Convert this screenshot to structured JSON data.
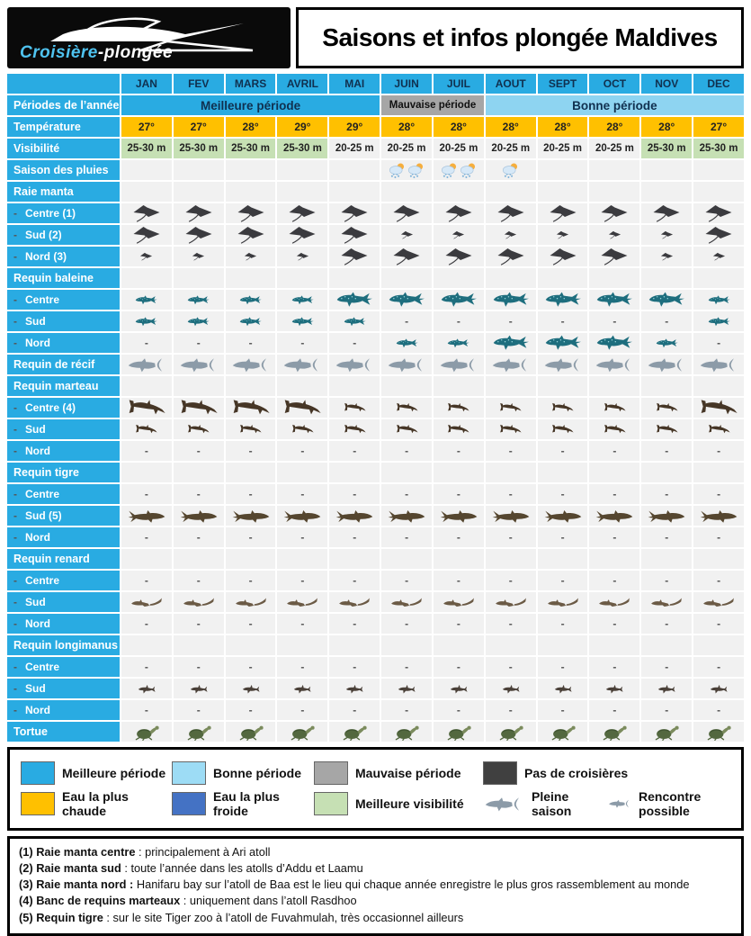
{
  "header": {
    "logo_text_1": "Croisière",
    "logo_text_2": "-plongée",
    "title": "Saisons et infos plongée Maldives"
  },
  "chart_data": {
    "type": "table",
    "title": "Saisons et infos plongée Maldives",
    "columns": [
      "JAN",
      "FEV",
      "MARS",
      "AVRIL",
      "MAI",
      "JUIN",
      "JUIL",
      "AOUT",
      "SEPT",
      "OCT",
      "NOV",
      "DEC"
    ],
    "row_labels": {
      "periods": "Périodes de l’année",
      "temperature": "Température",
      "visibility": "Visibilité",
      "rain": "Saison des pluies"
    },
    "periods": [
      {
        "label": "Meilleure période",
        "span": 5,
        "bg": "#29abe2"
      },
      {
        "label": "Mauvaise période",
        "span": 2,
        "bg": "#a6a6a6"
      },
      {
        "label": "Bonne période",
        "span": 5,
        "bg": "#8ed4f1"
      }
    ],
    "temperature": [
      "27°",
      "27°",
      "28°",
      "29°",
      "29°",
      "28°",
      "28°",
      "28°",
      "28°",
      "28°",
      "28°",
      "27°"
    ],
    "visibility": {
      "values": [
        "25-30 m",
        "25-30 m",
        "25-30 m",
        "25-30 m",
        "20-25 m",
        "20-25 m",
        "20-25 m",
        "20-25 m",
        "20-25 m",
        "20-25 m",
        "25-30 m",
        "25-30 m"
      ],
      "best": [
        true,
        true,
        true,
        true,
        false,
        false,
        false,
        false,
        false,
        false,
        true,
        true
      ]
    },
    "rain_counts": [
      0,
      0,
      0,
      0,
      0,
      2,
      2,
      1,
      0,
      0,
      0,
      0
    ],
    "icon_size_legend": {
      "B": "Pleine saison",
      "S": "Rencontre possible",
      "-": "absent"
    },
    "species": [
      {
        "name": "Raie manta",
        "icon": "manta",
        "rows": [
          {
            "label": "Centre (1)",
            "cells": [
              "B",
              "B",
              "B",
              "B",
              "B",
              "B",
              "B",
              "B",
              "B",
              "B",
              "B",
              "B"
            ]
          },
          {
            "label": "Sud (2)",
            "cells": [
              "B",
              "B",
              "B",
              "B",
              "B",
              "S",
              "S",
              "S",
              "S",
              "S",
              "S",
              "B"
            ]
          },
          {
            "label": "Nord (3)",
            "cells": [
              "S",
              "S",
              "S",
              "S",
              "B",
              "B",
              "B",
              "B",
              "B",
              "B",
              "S",
              "S"
            ]
          }
        ]
      },
      {
        "name": "Requin baleine",
        "icon": "whale",
        "rows": [
          {
            "label": "Centre",
            "cells": [
              "S",
              "S",
              "S",
              "S",
              "B",
              "B",
              "B",
              "B",
              "B",
              "B",
              "B",
              "S"
            ]
          },
          {
            "label": "Sud",
            "cells": [
              "S",
              "S",
              "S",
              "S",
              "S",
              "-",
              "-",
              "-",
              "-",
              "-",
              "-",
              "S"
            ]
          },
          {
            "label": "Nord",
            "cells": [
              "-",
              "-",
              "-",
              "-",
              "-",
              "S",
              "S",
              "B",
              "B",
              "B",
              "S",
              "-"
            ]
          }
        ]
      },
      {
        "name": "Requin de récif",
        "icon": "reef",
        "single": true,
        "cells": [
          "B",
          "B",
          "B",
          "B",
          "B",
          "B",
          "B",
          "B",
          "B",
          "B",
          "B",
          "B"
        ]
      },
      {
        "name": "Requin marteau",
        "icon": "hammer",
        "rows": [
          {
            "label": "Centre (4)",
            "cells": [
              "B",
              "B",
              "B",
              "B",
              "S",
              "S",
              "S",
              "S",
              "S",
              "S",
              "S",
              "B"
            ]
          },
          {
            "label": "Sud",
            "cells": [
              "S",
              "S",
              "S",
              "S",
              "S",
              "S",
              "S",
              "S",
              "S",
              "S",
              "S",
              "S"
            ]
          },
          {
            "label": "Nord",
            "cells": [
              "-",
              "-",
              "-",
              "-",
              "-",
              "-",
              "-",
              "-",
              "-",
              "-",
              "-",
              "-"
            ]
          }
        ]
      },
      {
        "name": "Requin tigre",
        "icon": "tiger",
        "rows": [
          {
            "label": "Centre",
            "cells": [
              "-",
              "-",
              "-",
              "-",
              "-",
              "-",
              "-",
              "-",
              "-",
              "-",
              "-",
              "-"
            ]
          },
          {
            "label": "Sud (5)",
            "cells": [
              "B",
              "B",
              "B",
              "B",
              "B",
              "B",
              "B",
              "B",
              "B",
              "B",
              "B",
              "B"
            ]
          },
          {
            "label": "Nord",
            "cells": [
              "-",
              "-",
              "-",
              "-",
              "-",
              "-",
              "-",
              "-",
              "-",
              "-",
              "-",
              "-"
            ]
          }
        ]
      },
      {
        "name": "Requin renard",
        "icon": "thresher",
        "rows": [
          {
            "label": "Centre",
            "cells": [
              "-",
              "-",
              "-",
              "-",
              "-",
              "-",
              "-",
              "-",
              "-",
              "-",
              "-",
              "-"
            ]
          },
          {
            "label": "Sud",
            "cells": [
              "S",
              "S",
              "S",
              "S",
              "S",
              "S",
              "S",
              "S",
              "S",
              "S",
              "S",
              "S"
            ]
          },
          {
            "label": "Nord",
            "cells": [
              "-",
              "-",
              "-",
              "-",
              "-",
              "-",
              "-",
              "-",
              "-",
              "-",
              "-",
              "-"
            ]
          }
        ]
      },
      {
        "name": "Requin longimanus",
        "icon": "longim",
        "rows": [
          {
            "label": "Centre",
            "cells": [
              "-",
              "-",
              "-",
              "-",
              "-",
              "-",
              "-",
              "-",
              "-",
              "-",
              "-",
              "-"
            ]
          },
          {
            "label": "Sud",
            "cells": [
              "S",
              "S",
              "S",
              "S",
              "S",
              "S",
              "S",
              "S",
              "S",
              "S",
              "S",
              "S"
            ]
          },
          {
            "label": "Nord",
            "cells": [
              "-",
              "-",
              "-",
              "-",
              "-",
              "-",
              "-",
              "-",
              "-",
              "-",
              "-",
              "-"
            ]
          }
        ]
      },
      {
        "name": "Tortue",
        "icon": "turtle",
        "single": true,
        "cells": [
          "B",
          "B",
          "B",
          "B",
          "B",
          "B",
          "B",
          "B",
          "B",
          "B",
          "B",
          "B"
        ]
      }
    ]
  },
  "colors": {
    "best_period": "#29abe2",
    "good_period": "#8ed4f1",
    "bad_period": "#a6a6a6",
    "no_cruise": "#404040",
    "warmest_water": "#ffc000",
    "coldest_water": "#4472c4",
    "best_visibility": "#c6e0b4"
  },
  "legend": {
    "rows": [
      [
        {
          "type": "swatch",
          "color": "#29abe2",
          "label": "Meilleure période"
        },
        {
          "type": "swatch",
          "color": "#9ddcf5",
          "label": "Bonne période"
        },
        {
          "type": "swatch",
          "color": "#a6a6a6",
          "label": "Mauvaise période"
        },
        {
          "type": "swatch",
          "color": "#404040",
          "label": "Pas de croisières"
        }
      ],
      [
        {
          "type": "swatch",
          "color": "#ffc000",
          "label": "Eau la plus chaude"
        },
        {
          "type": "swatch",
          "color": "#4472c4",
          "label": "Eau la plus froide"
        },
        {
          "type": "swatch",
          "color": "#c6e0b4",
          "label": "Meilleure visibilité"
        },
        {
          "type": "icon",
          "icon": "reef",
          "size": "B",
          "label": "Pleine saison"
        },
        {
          "type": "icon",
          "icon": "reef",
          "size": "S",
          "label": "Rencontre possible"
        }
      ]
    ]
  },
  "footnotes": [
    {
      "bold": "(1) Raie manta centre",
      "rest": " : principalement à Ari atoll"
    },
    {
      "bold": "(2) Raie manta sud",
      "rest": " : toute l’année dans les atolls d’Addu et Laamu"
    },
    {
      "bold": "(3) Raie manta nord :",
      "rest": " Hanifaru bay sur l’atoll de Baa est le lieu qui chaque année enregistre le plus gros rassemblement au monde"
    },
    {
      "bold": "(4) Banc de requins marteaux",
      "rest": " : uniquement dans l’atoll Rasdhoo"
    },
    {
      "bold": "(5) Requin tigre",
      "rest": " : sur le site Tiger zoo à l’atoll de Fuvahmulah, très occasionnel ailleurs"
    }
  ]
}
